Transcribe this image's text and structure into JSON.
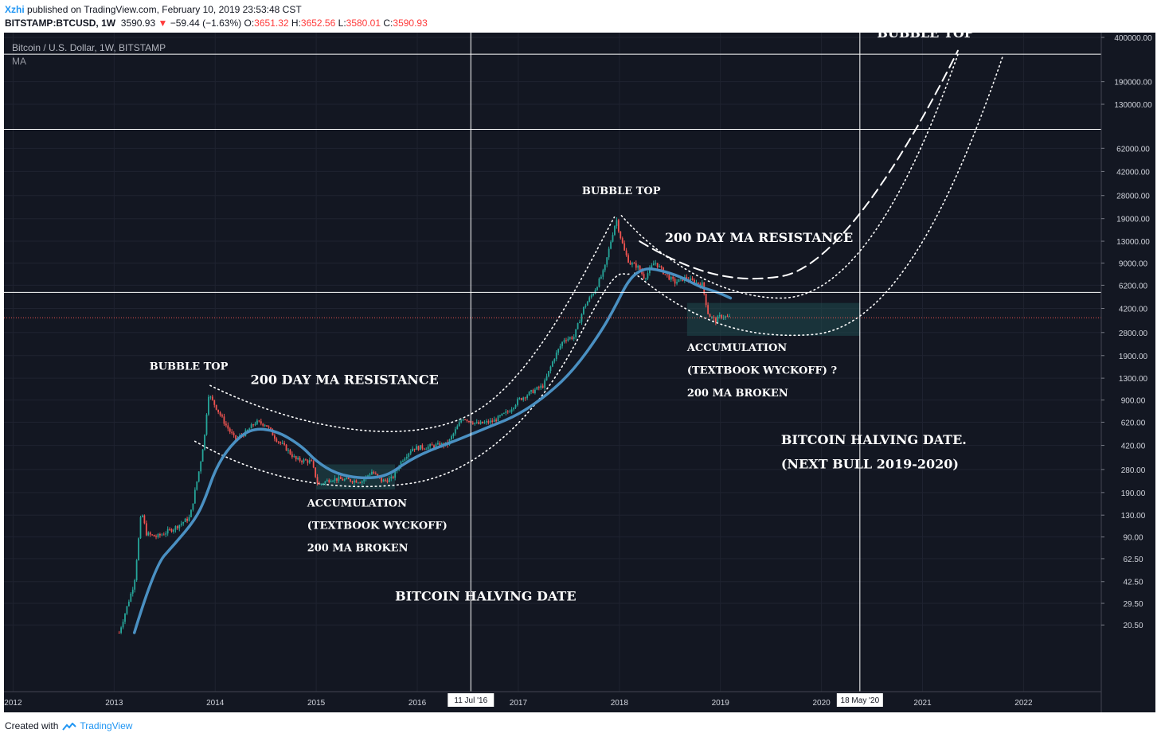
{
  "header": {
    "author": "Xzhi",
    "published": "published on TradingView.com, February 10, 2019 23:53:48 CST",
    "symbol": "BITSTAMP:BTCUSD, 1W",
    "last": "3590.93",
    "change": "−59.44 (−1.63%)",
    "o_label": "O:",
    "o_value": "3651.32",
    "h_label": "H:",
    "h_value": "3652.56",
    "l_label": "L:",
    "l_value": "3580.01",
    "c_label": "C:",
    "c_value": "3590.93"
  },
  "chart_legend": {
    "title": "Bitcoin / U.S. Dollar, 1W, BITSTAMP",
    "indicator": "MA"
  },
  "footer": {
    "created_with": "Created with",
    "brand": "TradingView"
  },
  "colors": {
    "background": "#131722",
    "up": "#26a69a",
    "down": "#ef5350",
    "ma": "#4a90c2",
    "accent": "#2196f3"
  },
  "chart_data": {
    "type": "candlestick",
    "title": "Bitcoin / U.S. Dollar, 1W, BITSTAMP",
    "scale": "log",
    "x_ticks": [
      "2012",
      "2013",
      "2014",
      "2015",
      "2016",
      "2017",
      "2018",
      "2019",
      "2020",
      "2021",
      "2022"
    ],
    "y_ticks": [
      "400000.00",
      "190000.00",
      "130000.00",
      "62000.00",
      "42000.00",
      "28000.00",
      "19000.00",
      "13000.00",
      "9000.00",
      "6200.00",
      "4200.00",
      "2800.00",
      "1900.00",
      "1300.00",
      "900.00",
      "620.00",
      "420.00",
      "280.00",
      "190.00",
      "130.00",
      "90.00",
      "62.50",
      "42.50",
      "29.50",
      "20.50"
    ],
    "price_lines": [
      {
        "value": 301452.8,
        "label": "301452.80"
      },
      {
        "value": 85254.48,
        "label": "85254.48"
      },
      {
        "value": 5495.64,
        "label": "5495.64"
      }
    ],
    "last_price": {
      "value": 3590.93,
      "label": "3590.93"
    },
    "vertical_markers": [
      {
        "date": 2016.53,
        "label": "11 Jul '16"
      },
      {
        "date": 2020.38,
        "label": "18 May '20"
      }
    ],
    "price_path": [
      [
        2013.05,
        18
      ],
      [
        2013.2,
        42
      ],
      [
        2013.27,
        140
      ],
      [
        2013.32,
        95
      ],
      [
        2013.42,
        90
      ],
      [
        2013.6,
        105
      ],
      [
        2013.75,
        125
      ],
      [
        2013.85,
        300
      ],
      [
        2013.9,
        520
      ],
      [
        2013.93,
        1000
      ],
      [
        2014.0,
        820
      ],
      [
        2014.1,
        600
      ],
      [
        2014.2,
        460
      ],
      [
        2014.3,
        520
      ],
      [
        2014.4,
        620
      ],
      [
        2014.5,
        600
      ],
      [
        2014.6,
        470
      ],
      [
        2014.7,
        400
      ],
      [
        2014.8,
        330
      ],
      [
        2014.95,
        320
      ],
      [
        2015.02,
        215
      ],
      [
        2015.15,
        240
      ],
      [
        2015.3,
        235
      ],
      [
        2015.45,
        230
      ],
      [
        2015.55,
        270
      ],
      [
        2015.65,
        230
      ],
      [
        2015.75,
        240
      ],
      [
        2015.85,
        330
      ],
      [
        2015.95,
        400
      ],
      [
        2016.1,
        410
      ],
      [
        2016.3,
        430
      ],
      [
        2016.45,
        670
      ],
      [
        2016.6,
        600
      ],
      [
        2016.75,
        630
      ],
      [
        2016.9,
        740
      ],
      [
        2017.0,
        900
      ],
      [
        2017.15,
        1050
      ],
      [
        2017.25,
        1150
      ],
      [
        2017.35,
        1800
      ],
      [
        2017.45,
        2500
      ],
      [
        2017.55,
        2600
      ],
      [
        2017.65,
        4300
      ],
      [
        2017.75,
        5600
      ],
      [
        2017.85,
        8000
      ],
      [
        2017.92,
        13500
      ],
      [
        2017.97,
        19000
      ],
      [
        2018.0,
        15000
      ],
      [
        2018.05,
        11000
      ],
      [
        2018.1,
        9000
      ],
      [
        2018.18,
        8500
      ],
      [
        2018.25,
        7000
      ],
      [
        2018.35,
        9200
      ],
      [
        2018.45,
        7500
      ],
      [
        2018.55,
        6500
      ],
      [
        2018.65,
        7000
      ],
      [
        2018.75,
        6500
      ],
      [
        2018.82,
        6300
      ],
      [
        2018.88,
        3800
      ],
      [
        2018.95,
        3400
      ],
      [
        2019.0,
        3700
      ],
      [
        2019.1,
        3590
      ]
    ],
    "ma_path": [
      [
        2013.2,
        18
      ],
      [
        2013.4,
        55
      ],
      [
        2013.6,
        80
      ],
      [
        2013.8,
        120
      ],
      [
        2013.9,
        170
      ],
      [
        2014.0,
        280
      ],
      [
        2014.15,
        420
      ],
      [
        2014.35,
        560
      ],
      [
        2014.6,
        540
      ],
      [
        2014.85,
        420
      ],
      [
        2015.0,
        320
      ],
      [
        2015.2,
        260
      ],
      [
        2015.45,
        240
      ],
      [
        2015.7,
        250
      ],
      [
        2015.9,
        320
      ],
      [
        2016.1,
        380
      ],
      [
        2016.4,
        460
      ],
      [
        2016.7,
        570
      ],
      [
        2017.0,
        700
      ],
      [
        2017.3,
        1000
      ],
      [
        2017.55,
        1500
      ],
      [
        2017.8,
        2700
      ],
      [
        2017.95,
        4200
      ],
      [
        2018.1,
        7000
      ],
      [
        2018.25,
        8300
      ],
      [
        2018.4,
        8000
      ],
      [
        2018.6,
        7200
      ],
      [
        2018.8,
        6000
      ],
      [
        2018.95,
        5600
      ],
      [
        2019.1,
        5000
      ]
    ],
    "accumulation_zones": [
      {
        "x0": 2015.0,
        "x1": 2015.78,
        "y0": 200,
        "y1": 305
      },
      {
        "x0": 2018.67,
        "x1": 2020.38,
        "y0": 2650,
        "y1": 4600
      }
    ],
    "annotations": [
      {
        "text": "BUBBLE TOP",
        "date": 2013.35,
        "price": 1500
      },
      {
        "text": "200 DAY MA RESISTANCE",
        "date": 2014.35,
        "price": 1180
      },
      {
        "text": "ACCUMULATION",
        "date": 2014.91,
        "price": 150
      },
      {
        "text": "(TEXTBOOK WYCKOFF)",
        "date": 2014.91,
        "price": 103
      },
      {
        "text": "200 MA BROKEN",
        "date": 2014.91,
        "price": 71
      },
      {
        "text": "BITCOIN HALVING DATE",
        "date": 2015.78,
        "price": 31
      },
      {
        "text": "BUBBLE TOP",
        "date": 2017.63,
        "price": 28600
      },
      {
        "text": "200 DAY MA RESISTANCE",
        "date": 2018.45,
        "price": 12800
      },
      {
        "text": "ACCUMULATION",
        "date": 2018.67,
        "price": 2050
      },
      {
        "text": "(TEXTBOOK WYCKOFF) ?",
        "date": 2018.67,
        "price": 1400
      },
      {
        "text": "200 MA BROKEN",
        "date": 2018.67,
        "price": 960
      },
      {
        "text": "BITCOIN HALVING DATE.",
        "date": 2019.6,
        "price": 430
      },
      {
        "text": "(NEXT BULL 2019-2020)",
        "date": 2019.6,
        "price": 285
      },
      {
        "text": "BUBBLE TOP",
        "date": 2020.55,
        "price": 400000
      }
    ]
  }
}
